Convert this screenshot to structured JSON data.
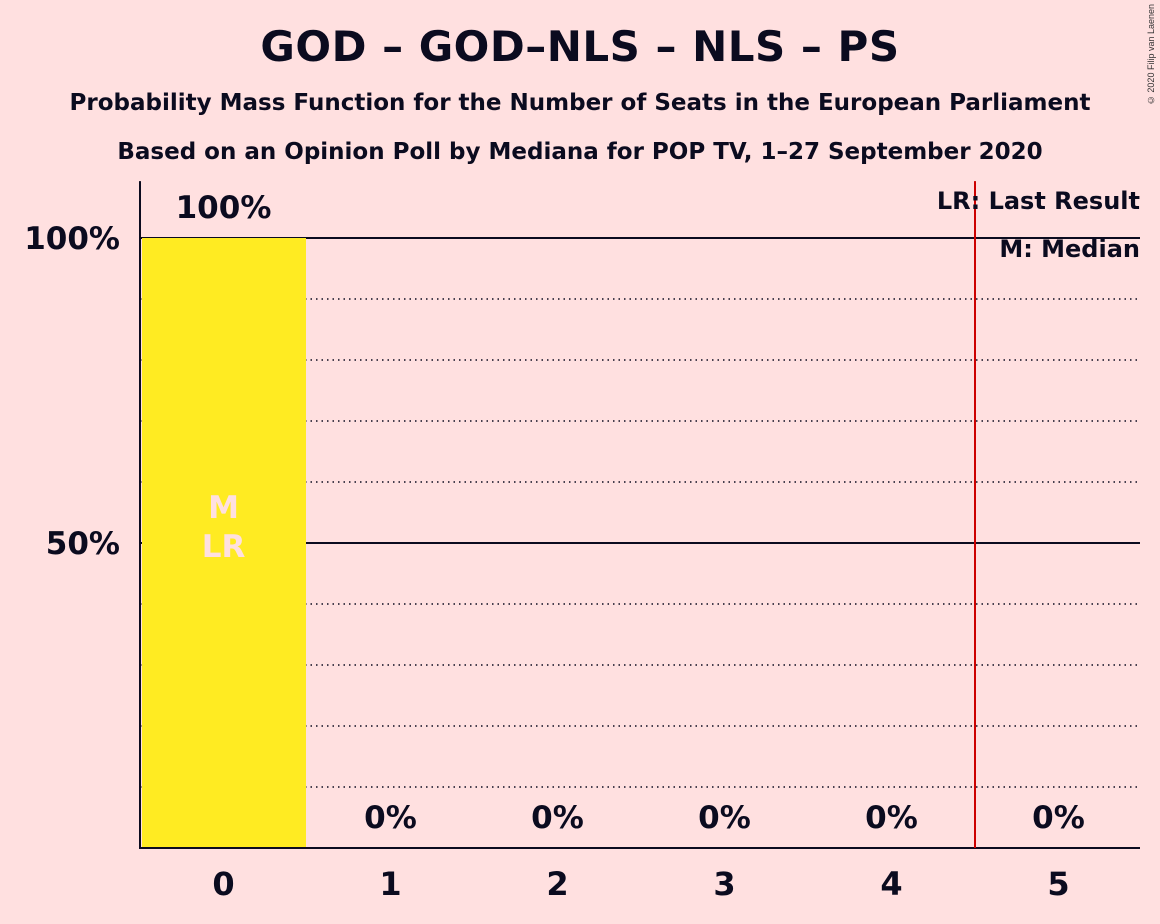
{
  "title": "GOD – GOD–NLS – NLS – PS",
  "subtitle": "Probability Mass Function for the Number of Seats in the European Parliament",
  "subtitle2": "Based on an Opinion Poll by Mediana for POP TV, 1–27 September 2020",
  "copyright": "© 2020 Filip van Laenen",
  "colors": {
    "background": "#FFE0E0",
    "bar": "#FFEB22",
    "last_result_line": "#CC0000",
    "text": "#0B0B1F"
  },
  "chart_data": {
    "type": "bar",
    "categories": [
      "0",
      "1",
      "2",
      "3",
      "4",
      "5"
    ],
    "values": [
      100,
      0,
      0,
      0,
      0,
      0
    ],
    "data_labels": [
      "100%",
      "0%",
      "0%",
      "0%",
      "0%",
      "0%"
    ],
    "ylim": [
      0,
      109
    ],
    "yticks": [
      {
        "value": 50,
        "label": "50%"
      },
      {
        "value": 100,
        "label": "100%"
      }
    ],
    "grid": {
      "major": [
        50,
        100
      ],
      "minor": [
        10,
        20,
        30,
        40,
        60,
        70,
        80,
        90
      ]
    },
    "median": 0,
    "median_label": "M",
    "last_result": 0,
    "last_result_label": "LR",
    "last_result_line_x": 4.5,
    "legend": [
      "LR: Last Result",
      "M: Median"
    ],
    "legend_position": "top-right"
  }
}
